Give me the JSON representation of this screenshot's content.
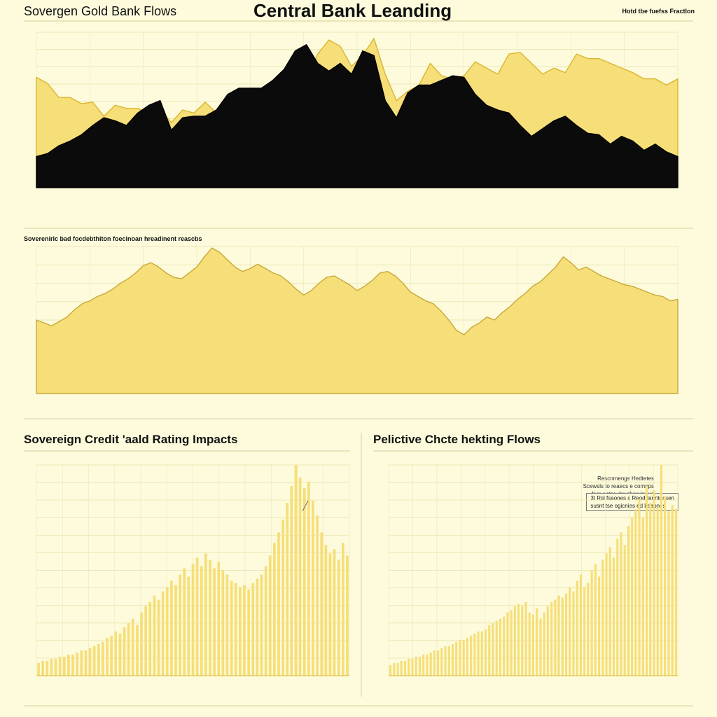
{
  "header": {
    "left_title": "Sovergen Gold Bank Flows",
    "center_title": "Central Bank Leanding",
    "right_note": "Hotd tbe fuefss Fractlon"
  },
  "colors": {
    "background": "#fdfbdc",
    "gold_fill": "#f6de78",
    "gold_line": "#d9b730",
    "dark_fill": "#0b0b0b",
    "grid": "#ece7b6",
    "rule": "#d8d097"
  },
  "chart_data": [
    {
      "id": "panel1",
      "type": "area",
      "title": "",
      "grid": true,
      "series": [
        {
          "role": "gold-area",
          "values": [
            0.71,
            0.67,
            0.58,
            0.58,
            0.54,
            0.55,
            0.46,
            0.53,
            0.51,
            0.51,
            0.48,
            0.5,
            0.42,
            0.5,
            0.48,
            0.55,
            0.48,
            0.48,
            0.55,
            0.5,
            0.52,
            0.61,
            0.62,
            0.62,
            0.71,
            0.86,
            0.95,
            0.91,
            0.78,
            0.85,
            0.96,
            0.73,
            0.56,
            0.62,
            0.66,
            0.8,
            0.72,
            0.7,
            0.72,
            0.81,
            0.77,
            0.73,
            0.86,
            0.87,
            0.8,
            0.73,
            0.77,
            0.74,
            0.86,
            0.83,
            0.83,
            0.8,
            0.77,
            0.74,
            0.7,
            0.7,
            0.66,
            0.7
          ]
        },
        {
          "role": "dark-area",
          "values": [
            0.2,
            0.22,
            0.27,
            0.3,
            0.34,
            0.4,
            0.45,
            0.43,
            0.4,
            0.48,
            0.53,
            0.56,
            0.37,
            0.45,
            0.46,
            0.46,
            0.5,
            0.6,
            0.64,
            0.64,
            0.64,
            0.69,
            0.76,
            0.88,
            0.92,
            0.8,
            0.75,
            0.8,
            0.73,
            0.88,
            0.85,
            0.56,
            0.45,
            0.61,
            0.66,
            0.66,
            0.69,
            0.72,
            0.71,
            0.6,
            0.53,
            0.5,
            0.48,
            0.4,
            0.33,
            0.38,
            0.43,
            0.46,
            0.4,
            0.35,
            0.34,
            0.28,
            0.33,
            0.3,
            0.24,
            0.28,
            0.23,
            0.2
          ]
        }
      ]
    },
    {
      "id": "panel2",
      "type": "area",
      "title": "Sovereniric bad focdebthiton foecinoan hreadinent reascbs",
      "grid": true,
      "series": [
        {
          "role": "gold-area",
          "values": [
            0.5,
            0.48,
            0.46,
            0.49,
            0.52,
            0.57,
            0.61,
            0.63,
            0.66,
            0.68,
            0.71,
            0.75,
            0.78,
            0.82,
            0.87,
            0.89,
            0.86,
            0.82,
            0.79,
            0.78,
            0.82,
            0.86,
            0.93,
            0.99,
            0.96,
            0.91,
            0.86,
            0.83,
            0.85,
            0.88,
            0.85,
            0.82,
            0.8,
            0.76,
            0.71,
            0.67,
            0.7,
            0.75,
            0.79,
            0.8,
            0.77,
            0.74,
            0.7,
            0.73,
            0.77,
            0.82,
            0.83,
            0.8,
            0.75,
            0.69,
            0.66,
            0.63,
            0.61,
            0.56,
            0.5,
            0.43,
            0.4,
            0.45,
            0.48,
            0.52,
            0.5,
            0.55,
            0.59,
            0.64,
            0.68,
            0.73,
            0.76,
            0.81,
            0.86,
            0.93,
            0.89,
            0.84,
            0.86,
            0.83,
            0.8,
            0.78,
            0.76,
            0.74,
            0.73,
            0.71,
            0.69,
            0.67,
            0.66,
            0.63,
            0.64
          ]
        }
      ]
    },
    {
      "id": "panel3",
      "type": "bar",
      "title": "Sovereign Credit 'aald Rating Impacts",
      "grid": true,
      "values": [
        0.06,
        0.07,
        0.07,
        0.08,
        0.08,
        0.09,
        0.09,
        0.1,
        0.1,
        0.11,
        0.12,
        0.12,
        0.13,
        0.14,
        0.15,
        0.16,
        0.18,
        0.19,
        0.21,
        0.2,
        0.23,
        0.25,
        0.27,
        0.24,
        0.3,
        0.33,
        0.35,
        0.38,
        0.36,
        0.4,
        0.42,
        0.45,
        0.43,
        0.48,
        0.51,
        0.47,
        0.53,
        0.56,
        0.52,
        0.58,
        0.55,
        0.51,
        0.54,
        0.5,
        0.48,
        0.45,
        0.44,
        0.42,
        0.43,
        0.41,
        0.44,
        0.46,
        0.48,
        0.52,
        0.57,
        0.63,
        0.68,
        0.74,
        0.82,
        0.9,
        1.0,
        0.94,
        0.89,
        0.92,
        0.83,
        0.76,
        0.68,
        0.62,
        0.58,
        0.6,
        0.55,
        0.63,
        0.57
      ],
      "annotation": [
        "Rescnmengs Hedtetes",
        "Scewsls to reaecs e comnps",
        "fecr oetss rhs dhns lneus",
        "regioos"
      ]
    },
    {
      "id": "panel4",
      "type": "bar",
      "title": "Pelictive Chcte hekting Flows",
      "grid": true,
      "values": [
        0.05,
        0.06,
        0.06,
        0.07,
        0.07,
        0.08,
        0.08,
        0.09,
        0.09,
        0.1,
        0.1,
        0.11,
        0.12,
        0.12,
        0.13,
        0.14,
        0.14,
        0.15,
        0.16,
        0.17,
        0.17,
        0.18,
        0.19,
        0.2,
        0.21,
        0.21,
        0.22,
        0.24,
        0.25,
        0.26,
        0.27,
        0.28,
        0.3,
        0.31,
        0.33,
        0.34,
        0.33,
        0.35,
        0.3,
        0.29,
        0.32,
        0.27,
        0.3,
        0.33,
        0.35,
        0.36,
        0.38,
        0.37,
        0.39,
        0.42,
        0.4,
        0.45,
        0.48,
        0.42,
        0.44,
        0.5,
        0.53,
        0.47,
        0.55,
        0.58,
        0.61,
        0.56,
        0.65,
        0.68,
        0.62,
        0.71,
        0.75,
        0.79,
        0.84,
        0.75,
        0.9,
        0.82,
        0.88,
        0.8,
        1.0,
        0.85,
        0.78,
        0.81,
        0.79
      ],
      "annotation": [
        "3t Rsl fsaones s Reoddanntossen",
        "susnt tse ogicnies ed bsaones"
      ]
    }
  ]
}
